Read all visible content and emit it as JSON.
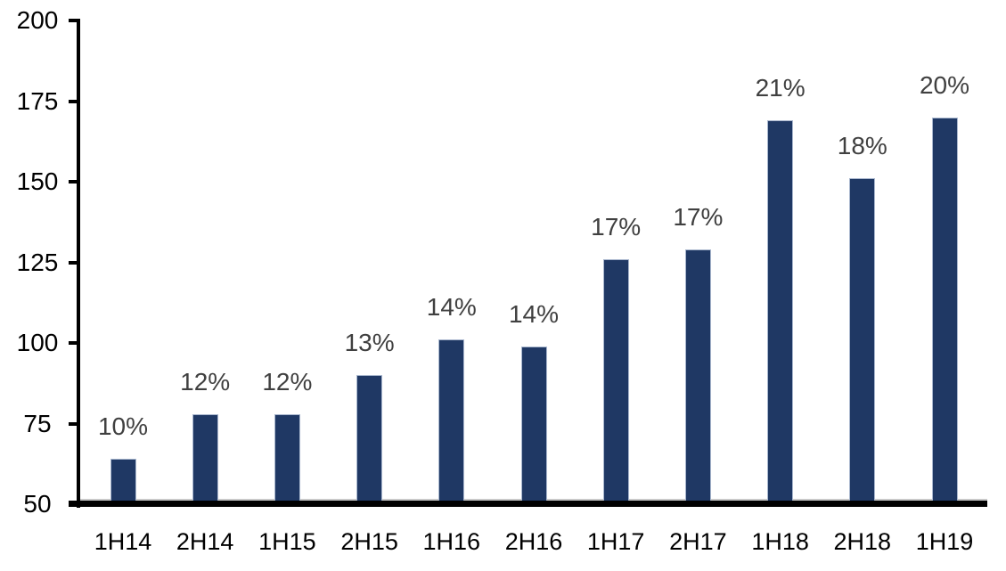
{
  "chart_data": {
    "type": "bar",
    "title": "",
    "xlabel": "",
    "ylabel": "",
    "categories": [
      "1H14",
      "2H14",
      "1H15",
      "2H15",
      "1H16",
      "2H16",
      "1H17",
      "2H17",
      "1H18",
      "2H18",
      "1H19"
    ],
    "values": [
      64,
      78,
      78,
      90,
      101,
      99,
      126,
      129,
      169,
      151,
      170
    ],
    "bar_labels": [
      "10%",
      "12%",
      "12%",
      "13%",
      "14%",
      "14%",
      "17%",
      "17%",
      "21%",
      "18%",
      "20%"
    ],
    "y_ticks": [
      50,
      75,
      100,
      125,
      150,
      175,
      200
    ],
    "ylim": [
      50,
      200
    ],
    "grid": "off",
    "legend": "none",
    "colors": {
      "bar_fill": "#1F3864",
      "bar_border": "#A9B7CE",
      "data_label": "#404040",
      "axis_text": "#000000",
      "axis_line": "#000000",
      "baseline_gridline": "#C9C9C9",
      "background": "#FFFFFF"
    }
  }
}
